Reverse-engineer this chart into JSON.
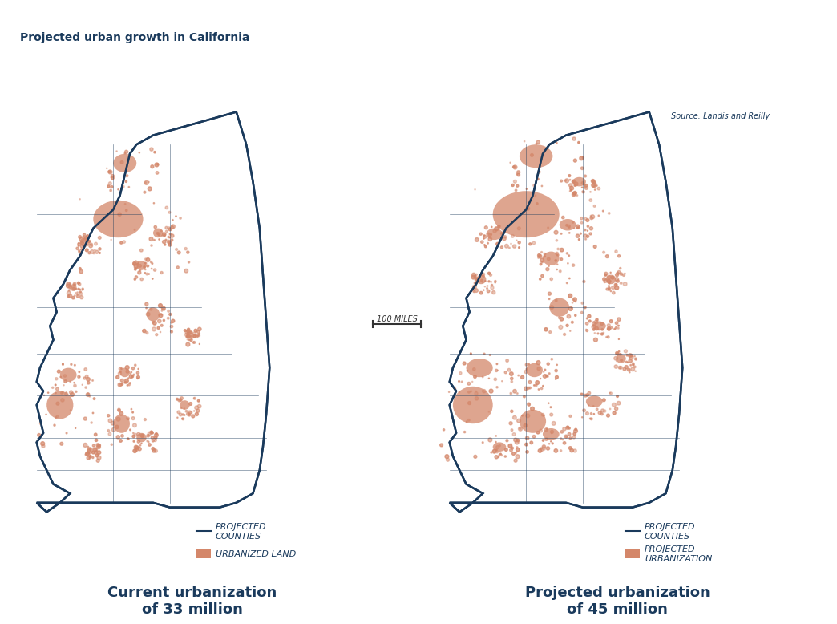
{
  "title_left": "Current urbanization\nof 33 million",
  "title_right": "Projected urbanization\nof 45 million",
  "title_color": "#1a3a5c",
  "title_fontsize": 13,
  "legend_left_label1": "URBANIZED LAND",
  "legend_left_label2": "PROJECTED\nCOUNTIES",
  "legend_right_label1": "PROJECTED\nURBANIZATION",
  "legend_right_label2": "PROJECTED\nCOUNTIES",
  "legend_fontsize": 8,
  "legend_color": "#1a3a5c",
  "urban_color": "#d4876a",
  "county_line_color": "#1a3a5c",
  "background_color": "#ffffff",
  "scale_bar_label": "100 MILES",
  "source_text": "Source: Landis and Reilly",
  "source_fontsize": 7,
  "caption": "Projected urban growth in California",
  "caption_color": "#1a3a5c",
  "caption_fontsize": 10
}
